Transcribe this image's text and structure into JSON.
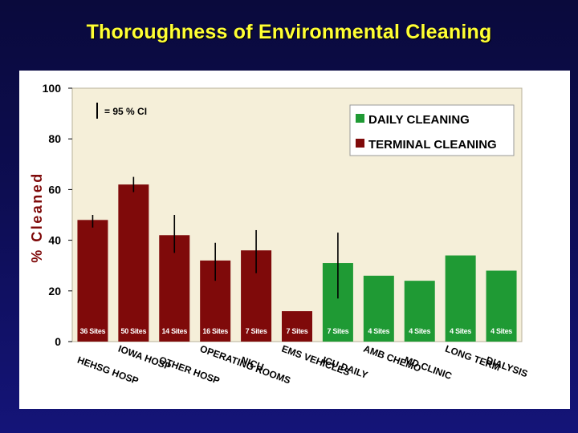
{
  "slide": {
    "title": "Thoroughness of Environmental Cleaning"
  },
  "colors": {
    "plot_bg": "#f5efd9",
    "daily": "#1f9a34",
    "terminal": "#7f0a0a",
    "error_bar": "#000000"
  },
  "chart_data": {
    "type": "bar",
    "title": "",
    "ylabel": "% Cleaned",
    "xlabel": "",
    "ylim": [
      0,
      100
    ],
    "yticks": [
      0,
      20,
      40,
      60,
      80,
      100
    ],
    "grid": false,
    "legend_position": "top-right",
    "ci_note": "= 95 % CI",
    "categories": [
      "HEHSG HOSP",
      "IOWA HOSP",
      "OTHER HOSP",
      "OPERATING ROOMS",
      "NICU",
      "EMS VEHICLES",
      "ICU DAILY",
      "AMB CHEMO",
      "MD CLINIC",
      "LONG TERM",
      "DIALYSIS"
    ],
    "series": [
      {
        "name": "DAILY CLEANING",
        "color_key": "daily"
      },
      {
        "name": "TERMINAL CLEANING",
        "color_key": "terminal"
      }
    ],
    "bars": [
      {
        "value": 48,
        "ci": [
          45,
          50
        ],
        "sites": "36 Sites",
        "series": 1
      },
      {
        "value": 62,
        "ci": [
          59,
          65
        ],
        "sites": "50 Sites",
        "series": 1
      },
      {
        "value": 42,
        "ci": [
          35,
          50
        ],
        "sites": "14 Sites",
        "series": 1
      },
      {
        "value": 32,
        "ci": [
          24,
          39
        ],
        "sites": "16 Sites",
        "series": 1
      },
      {
        "value": 36,
        "ci": [
          27,
          44
        ],
        "sites": "7 Sites",
        "series": 1
      },
      {
        "value": 12,
        "ci": null,
        "sites": "7 Sites",
        "series": 1
      },
      {
        "value": 31,
        "ci": [
          17,
          43
        ],
        "sites": "7 Sites",
        "series": 0
      },
      {
        "value": 26,
        "ci": null,
        "sites": "4 Sites",
        "series": 0
      },
      {
        "value": 24,
        "ci": null,
        "sites": "4 Sites",
        "series": 0
      },
      {
        "value": 34,
        "ci": null,
        "sites": "4 Sites",
        "series": 0
      },
      {
        "value": 28,
        "ci": null,
        "sites": "4 Sites",
        "series": 0
      }
    ]
  }
}
